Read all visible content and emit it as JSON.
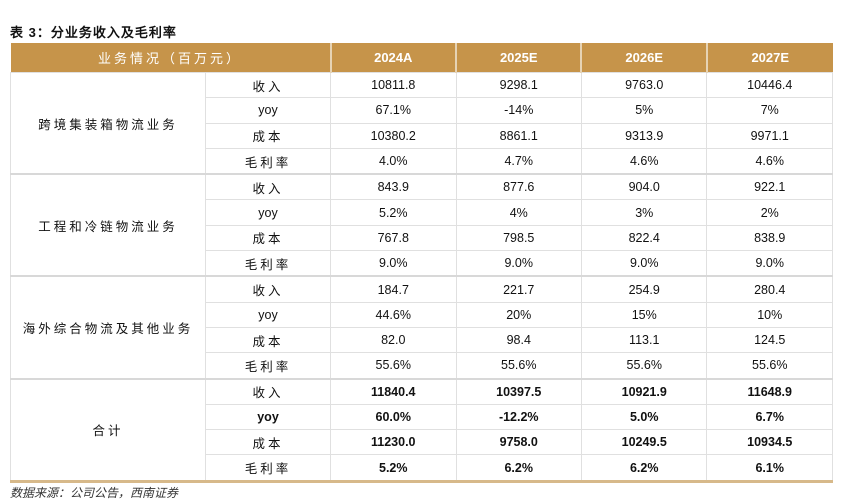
{
  "title": "表 3：分业务收入及毛利率",
  "header": [
    "业务情况（百万元）",
    "2024A",
    "2025E",
    "2026E",
    "2027E"
  ],
  "groups": [
    {
      "name": "跨境集装箱物流业务",
      "rows": [
        {
          "label": "收入",
          "values": [
            "10811.8",
            "9298.1",
            "9763.0",
            "10446.4"
          ]
        },
        {
          "label": "yoy",
          "values": [
            "67.1%",
            "-14%",
            "5%",
            "7%"
          ]
        },
        {
          "label": "成本",
          "values": [
            "10380.2",
            "8861.1",
            "9313.9",
            "9971.1"
          ]
        },
        {
          "label": "毛利率",
          "values": [
            "4.0%",
            "4.7%",
            "4.6%",
            "4.6%"
          ]
        }
      ]
    },
    {
      "name": "工程和冷链物流业务",
      "rows": [
        {
          "label": "收入",
          "values": [
            "843.9",
            "877.6",
            "904.0",
            "922.1"
          ]
        },
        {
          "label": "yoy",
          "values": [
            "5.2%",
            "4%",
            "3%",
            "2%"
          ]
        },
        {
          "label": "成本",
          "values": [
            "767.8",
            "798.5",
            "822.4",
            "838.9"
          ]
        },
        {
          "label": "毛利率",
          "values": [
            "9.0%",
            "9.0%",
            "9.0%",
            "9.0%"
          ]
        }
      ]
    },
    {
      "name": "海外综合物流及其他业务",
      "rows": [
        {
          "label": "收入",
          "values": [
            "184.7",
            "221.7",
            "254.9",
            "280.4"
          ]
        },
        {
          "label": "yoy",
          "values": [
            "44.6%",
            "20%",
            "15%",
            "10%"
          ]
        },
        {
          "label": "成本",
          "values": [
            "82.0",
            "98.4",
            "113.1",
            "124.5"
          ]
        },
        {
          "label": "毛利率",
          "values": [
            "55.6%",
            "55.6%",
            "55.6%",
            "55.6%"
          ]
        }
      ]
    },
    {
      "name": "合计",
      "rows": [
        {
          "label": "收入",
          "values": [
            "11840.4",
            "10397.5",
            "10921.9",
            "11648.9"
          ]
        },
        {
          "label": "yoy",
          "values": [
            "60.0%",
            "-12.2%",
            "5.0%",
            "6.7%"
          ]
        },
        {
          "label": "成本",
          "values": [
            "11230.0",
            "9758.0",
            "10249.5",
            "10934.5"
          ]
        },
        {
          "label": "毛利率",
          "values": [
            "5.2%",
            "6.2%",
            "6.2%",
            "6.1%"
          ]
        }
      ]
    }
  ],
  "source": "数据来源：公司公告，西南证券",
  "colors": {
    "header_bg": "#c6944a"
  }
}
